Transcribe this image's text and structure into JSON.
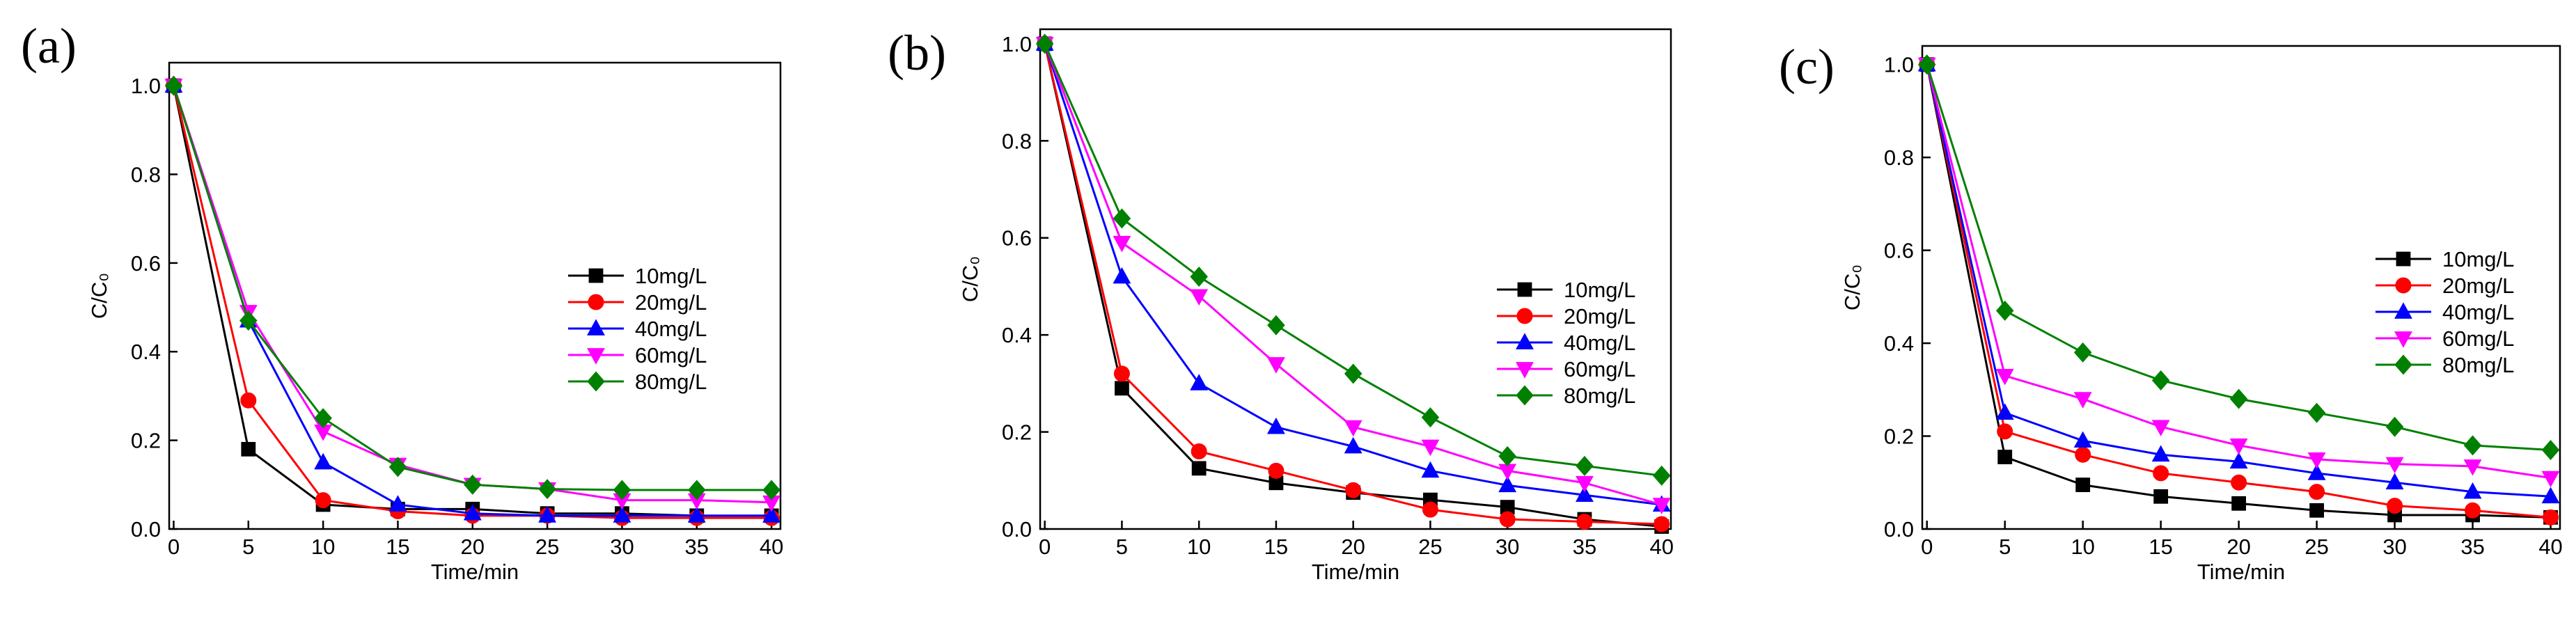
{
  "chart_data": [
    {
      "type": "line",
      "label": "(a)",
      "xlabel": "Time/min",
      "ylabel": "C/C₀",
      "x": [
        0,
        5,
        10,
        15,
        20,
        25,
        30,
        35,
        40
      ],
      "xlim": [
        -0.3,
        40.6
      ],
      "ylim": [
        0,
        1.052
      ],
      "xticks": [
        0,
        5,
        10,
        15,
        20,
        25,
        30,
        35,
        40
      ],
      "yticks": [
        {
          "value": 0,
          "label": "0.0"
        },
        0.2,
        0.4,
        0.6,
        0.8,
        {
          "value": 1,
          "label": "1.0"
        }
      ],
      "legend": "right",
      "series": [
        {
          "name": "10mg/L",
          "color": "#000000",
          "marker": "square",
          "values": [
            1.0,
            0.18,
            0.055,
            0.045,
            0.045,
            0.035,
            0.035,
            0.03,
            0.03
          ]
        },
        {
          "name": "20mg/L",
          "color": "#ff0000",
          "marker": "circle",
          "values": [
            1.0,
            0.29,
            0.065,
            0.04,
            0.03,
            0.03,
            0.025,
            0.025,
            0.025
          ]
        },
        {
          "name": "40mg/L",
          "color": "#0000ff",
          "marker": "triangle-up",
          "values": [
            1.0,
            0.47,
            0.15,
            0.055,
            0.035,
            0.03,
            0.03,
            0.03,
            0.03
          ]
        },
        {
          "name": "60mg/L",
          "color": "#ff00ff",
          "marker": "triangle-down",
          "values": [
            1.0,
            0.49,
            0.22,
            0.145,
            0.1,
            0.09,
            0.065,
            0.065,
            0.06
          ]
        },
        {
          "name": "80mg/L",
          "color": "#008000",
          "marker": "diamond",
          "values": [
            1.0,
            0.47,
            0.25,
            0.14,
            0.1,
            0.09,
            0.088,
            0.088,
            0.088
          ]
        }
      ]
    },
    {
      "type": "line",
      "label": "(b)",
      "xlabel": "Time/min",
      "ylabel": "C/C₀",
      "x": [
        0,
        5,
        10,
        15,
        20,
        25,
        30,
        35,
        40
      ],
      "xlim": [
        -0.3,
        40.6
      ],
      "ylim": [
        0,
        1.03
      ],
      "xticks": [
        0,
        5,
        10,
        15,
        20,
        25,
        30,
        35,
        40
      ],
      "yticks": [
        {
          "value": 0,
          "label": "0.0"
        },
        0.2,
        0.4,
        0.6,
        0.8,
        {
          "value": 1,
          "label": "1.0"
        }
      ],
      "legend": "right",
      "series": [
        {
          "name": "10mg/L",
          "color": "#000000",
          "marker": "square",
          "values": [
            1.0,
            0.29,
            0.125,
            0.095,
            0.075,
            0.06,
            0.045,
            0.02,
            0.005
          ]
        },
        {
          "name": "20mg/L",
          "color": "#ff0000",
          "marker": "circle",
          "values": [
            1.0,
            0.32,
            0.16,
            0.12,
            0.08,
            0.04,
            0.02,
            0.015,
            0.01
          ]
        },
        {
          "name": "40mg/L",
          "color": "#0000ff",
          "marker": "triangle-up",
          "values": [
            1.0,
            0.52,
            0.3,
            0.21,
            0.17,
            0.12,
            0.09,
            0.07,
            0.05
          ]
        },
        {
          "name": "60mg/L",
          "color": "#ff00ff",
          "marker": "triangle-down",
          "values": [
            1.0,
            0.59,
            0.48,
            0.34,
            0.21,
            0.17,
            0.12,
            0.095,
            0.05
          ]
        },
        {
          "name": "80mg/L",
          "color": "#008000",
          "marker": "diamond",
          "values": [
            1.0,
            0.64,
            0.52,
            0.42,
            0.32,
            0.23,
            0.15,
            0.13,
            0.11
          ]
        }
      ]
    },
    {
      "type": "line",
      "label": "(c)",
      "xlabel": "Time/min",
      "ylabel": "C/C₀",
      "x": [
        0,
        5,
        10,
        15,
        20,
        25,
        30,
        35,
        40
      ],
      "xlim": [
        -0.3,
        40.6
      ],
      "ylim": [
        0,
        1.04
      ],
      "xticks": [
        0,
        5,
        10,
        15,
        20,
        25,
        30,
        35,
        40
      ],
      "yticks": [
        {
          "value": 0,
          "label": "0.0"
        },
        0.2,
        0.4,
        0.6,
        0.8,
        {
          "value": 1,
          "label": "1.0"
        }
      ],
      "legend": "right",
      "series": [
        {
          "name": "10mg/L",
          "color": "#000000",
          "marker": "square",
          "values": [
            1.0,
            0.155,
            0.095,
            0.07,
            0.055,
            0.04,
            0.03,
            0.03,
            0.025
          ]
        },
        {
          "name": "20mg/L",
          "color": "#ff0000",
          "marker": "circle",
          "values": [
            1.0,
            0.21,
            0.16,
            0.12,
            0.1,
            0.08,
            0.05,
            0.04,
            0.025
          ]
        },
        {
          "name": "40mg/L",
          "color": "#0000ff",
          "marker": "triangle-up",
          "values": [
            1.0,
            0.25,
            0.19,
            0.16,
            0.145,
            0.12,
            0.1,
            0.08,
            0.07
          ]
        },
        {
          "name": "60mg/L",
          "color": "#ff00ff",
          "marker": "triangle-down",
          "values": [
            1.0,
            0.33,
            0.28,
            0.22,
            0.18,
            0.15,
            0.14,
            0.135,
            0.11
          ]
        },
        {
          "name": "80mg/L",
          "color": "#008000",
          "marker": "diamond",
          "values": [
            1.0,
            0.47,
            0.38,
            0.32,
            0.28,
            0.25,
            0.22,
            0.18,
            0.17
          ]
        }
      ]
    }
  ]
}
